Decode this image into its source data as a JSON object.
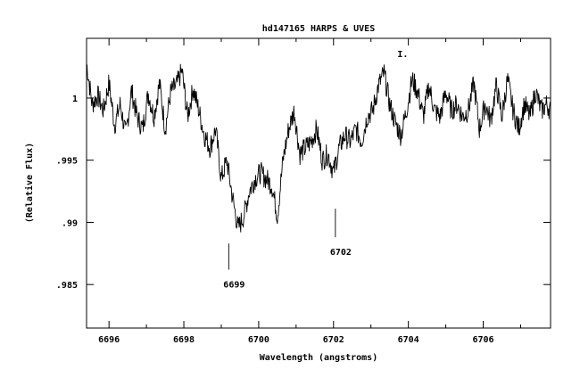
{
  "chart_data": {
    "type": "line",
    "title": "hd147165 HARPS & UVES",
    "xlabel": "Wavelength (angstroms)",
    "ylabel": "(Relative Flux)",
    "xlim": [
      6695.4,
      6707.8
    ],
    "ylim": [
      0.9815,
      1.0048
    ],
    "x_ticks": [
      6696,
      6698,
      6700,
      6702,
      6704,
      6706
    ],
    "x_tick_labels": [
      "6696",
      "6698",
      "6700",
      "6702",
      "6704",
      "6706"
    ],
    "y_ticks": [
      0.985,
      0.99,
      0.995,
      1.0
    ],
    "y_tick_labels": [
      ".985",
      ".99",
      ".995",
      "1"
    ],
    "grid": false,
    "series": [
      {
        "x": [
          6695.4,
          6695.55,
          6695.7,
          6695.85,
          6696.0,
          6696.15,
          6696.3,
          6696.45,
          6696.6,
          6696.75,
          6696.9,
          6697.05,
          6697.2,
          6697.35,
          6697.5,
          6697.65,
          6697.8,
          6697.95,
          6698.1,
          6698.25,
          6698.4,
          6698.55,
          6698.7,
          6698.85,
          6699.0,
          6699.15,
          6699.3,
          6699.45,
          6699.6,
          6699.75,
          6699.9,
          6700.05,
          6700.2,
          6700.35,
          6700.5,
          6700.65,
          6700.8,
          6700.95,
          6701.1,
          6701.25,
          6701.4,
          6701.55,
          6701.7,
          6701.85,
          6702.0,
          6702.15,
          6702.3,
          6702.45,
          6702.6,
          6702.75,
          6702.9,
          6703.05,
          6703.2,
          6703.35,
          6703.5,
          6703.65,
          6703.8,
          6703.95,
          6704.1,
          6704.25,
          6704.4,
          6704.55,
          6704.7,
          6704.85,
          6705.0,
          6705.15,
          6705.3,
          6705.45,
          6705.6,
          6705.75,
          6705.9,
          6706.05,
          6706.2,
          6706.35,
          6706.5,
          6706.65,
          6706.8,
          6706.95,
          6707.1,
          6707.25,
          6707.4,
          6707.55,
          6707.7,
          6707.8
        ],
        "y": [
          1.0028,
          0.9995,
          1.0002,
          0.999,
          1.0012,
          0.9978,
          0.9995,
          0.997,
          1.0006,
          0.9985,
          0.9975,
          1.0004,
          0.9985,
          1.0012,
          0.9975,
          1.0005,
          1.001,
          1.0022,
          0.9985,
          1.0008,
          0.999,
          0.997,
          0.996,
          0.9975,
          0.9935,
          0.995,
          0.992,
          0.9895,
          0.9905,
          0.9925,
          0.9935,
          0.994,
          0.9935,
          0.993,
          0.9905,
          0.995,
          0.9975,
          0.999,
          0.9955,
          0.996,
          0.9965,
          0.9975,
          0.995,
          0.9955,
          0.994,
          0.996,
          0.997,
          0.9965,
          0.9975,
          0.9965,
          0.9985,
          0.999,
          1.001,
          1.002,
          0.9995,
          0.998,
          0.997,
          0.999,
          1.0015,
          1.0005,
          0.9985,
          1.001,
          0.999,
          0.9985,
          1.0005,
          0.999,
          0.9995,
          0.9985,
          0.999,
          1.0012,
          0.9975,
          0.9995,
          0.9982,
          1.001,
          0.9985,
          1.0015,
          0.999,
          0.9975,
          0.9995,
          0.9985,
          1.0005,
          0.999,
          0.9995,
          0.999
        ]
      }
    ],
    "annotations": [
      {
        "text": "6699",
        "x": 6699.2,
        "line_y": [
          0.9862,
          0.9883
        ]
      },
      {
        "text": "6702",
        "x": 6702.05,
        "line_y": [
          0.9888,
          0.9911
        ]
      },
      {
        "text": "I.",
        "x": 6703.85,
        "y": 1.0033
      }
    ]
  }
}
